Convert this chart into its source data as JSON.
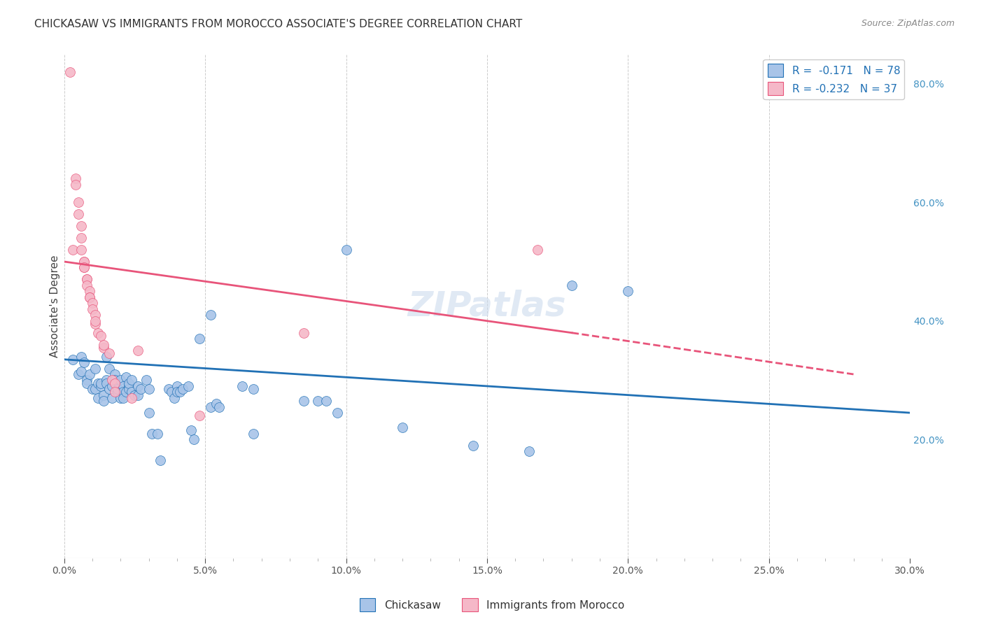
{
  "title": "CHICKASAW VS IMMIGRANTS FROM MOROCCO ASSOCIATE'S DEGREE CORRELATION CHART",
  "source": "Source: ZipAtlas.com",
  "ylabel": "Associate's Degree",
  "xlabel": "",
  "watermark": "ZIPatlas",
  "xlim": [
    0.0,
    0.3
  ],
  "ylim": [
    0.0,
    0.85
  ],
  "xticks": [
    0.0,
    0.05,
    0.1,
    0.15,
    0.2,
    0.25,
    0.3
  ],
  "xticks_minor": [
    0.01,
    0.02,
    0.03,
    0.04,
    0.06,
    0.07,
    0.08,
    0.09,
    0.11,
    0.12,
    0.13,
    0.14,
    0.16,
    0.17,
    0.18,
    0.19,
    0.21,
    0.22,
    0.23,
    0.24,
    0.26,
    0.27,
    0.28,
    0.29
  ],
  "yticks_right": [
    0.2,
    0.4,
    0.6,
    0.8
  ],
  "legend_blue_R": "-0.171",
  "legend_blue_N": "78",
  "legend_pink_R": "-0.232",
  "legend_pink_N": "37",
  "blue_color": "#a8c4e8",
  "pink_color": "#f5b8c8",
  "line_blue": "#2171b5",
  "line_pink": "#e8547a",
  "blue_scatter": [
    [
      0.003,
      0.335
    ],
    [
      0.005,
      0.31
    ],
    [
      0.006,
      0.315
    ],
    [
      0.006,
      0.34
    ],
    [
      0.007,
      0.33
    ],
    [
      0.008,
      0.3
    ],
    [
      0.008,
      0.295
    ],
    [
      0.009,
      0.31
    ],
    [
      0.01,
      0.285
    ],
    [
      0.011,
      0.32
    ],
    [
      0.011,
      0.285
    ],
    [
      0.012,
      0.27
    ],
    [
      0.012,
      0.295
    ],
    [
      0.013,
      0.29
    ],
    [
      0.013,
      0.295
    ],
    [
      0.014,
      0.275
    ],
    [
      0.014,
      0.265
    ],
    [
      0.015,
      0.34
    ],
    [
      0.015,
      0.3
    ],
    [
      0.015,
      0.295
    ],
    [
      0.016,
      0.32
    ],
    [
      0.016,
      0.285
    ],
    [
      0.017,
      0.27
    ],
    [
      0.017,
      0.29
    ],
    [
      0.018,
      0.31
    ],
    [
      0.018,
      0.3
    ],
    [
      0.019,
      0.28
    ],
    [
      0.019,
      0.285
    ],
    [
      0.02,
      0.27
    ],
    [
      0.02,
      0.3
    ],
    [
      0.021,
      0.29
    ],
    [
      0.021,
      0.28
    ],
    [
      0.021,
      0.27
    ],
    [
      0.022,
      0.28
    ],
    [
      0.022,
      0.305
    ],
    [
      0.023,
      0.29
    ],
    [
      0.023,
      0.285
    ],
    [
      0.023,
      0.295
    ],
    [
      0.024,
      0.3
    ],
    [
      0.024,
      0.28
    ],
    [
      0.025,
      0.275
    ],
    [
      0.026,
      0.29
    ],
    [
      0.026,
      0.275
    ],
    [
      0.027,
      0.285
    ],
    [
      0.029,
      0.3
    ],
    [
      0.03,
      0.285
    ],
    [
      0.03,
      0.245
    ],
    [
      0.031,
      0.21
    ],
    [
      0.033,
      0.21
    ],
    [
      0.034,
      0.165
    ],
    [
      0.037,
      0.285
    ],
    [
      0.038,
      0.28
    ],
    [
      0.039,
      0.27
    ],
    [
      0.04,
      0.29
    ],
    [
      0.04,
      0.28
    ],
    [
      0.041,
      0.28
    ],
    [
      0.042,
      0.285
    ],
    [
      0.044,
      0.29
    ],
    [
      0.045,
      0.215
    ],
    [
      0.046,
      0.2
    ],
    [
      0.048,
      0.37
    ],
    [
      0.052,
      0.41
    ],
    [
      0.052,
      0.255
    ],
    [
      0.054,
      0.26
    ],
    [
      0.055,
      0.255
    ],
    [
      0.063,
      0.29
    ],
    [
      0.067,
      0.285
    ],
    [
      0.067,
      0.21
    ],
    [
      0.085,
      0.265
    ],
    [
      0.09,
      0.265
    ],
    [
      0.093,
      0.265
    ],
    [
      0.097,
      0.245
    ],
    [
      0.1,
      0.52
    ],
    [
      0.12,
      0.22
    ],
    [
      0.145,
      0.19
    ],
    [
      0.165,
      0.18
    ],
    [
      0.18,
      0.46
    ],
    [
      0.2,
      0.45
    ]
  ],
  "pink_scatter": [
    [
      0.002,
      0.82
    ],
    [
      0.003,
      0.52
    ],
    [
      0.004,
      0.64
    ],
    [
      0.004,
      0.63
    ],
    [
      0.005,
      0.6
    ],
    [
      0.005,
      0.58
    ],
    [
      0.006,
      0.56
    ],
    [
      0.006,
      0.54
    ],
    [
      0.006,
      0.52
    ],
    [
      0.007,
      0.5
    ],
    [
      0.007,
      0.49
    ],
    [
      0.007,
      0.5
    ],
    [
      0.007,
      0.49
    ],
    [
      0.008,
      0.47
    ],
    [
      0.008,
      0.47
    ],
    [
      0.008,
      0.46
    ],
    [
      0.009,
      0.45
    ],
    [
      0.009,
      0.44
    ],
    [
      0.009,
      0.44
    ],
    [
      0.01,
      0.43
    ],
    [
      0.01,
      0.42
    ],
    [
      0.011,
      0.41
    ],
    [
      0.011,
      0.395
    ],
    [
      0.011,
      0.4
    ],
    [
      0.012,
      0.38
    ],
    [
      0.013,
      0.375
    ],
    [
      0.014,
      0.355
    ],
    [
      0.014,
      0.36
    ],
    [
      0.016,
      0.345
    ],
    [
      0.017,
      0.3
    ],
    [
      0.018,
      0.295
    ],
    [
      0.018,
      0.28
    ],
    [
      0.024,
      0.27
    ],
    [
      0.048,
      0.24
    ],
    [
      0.085,
      0.38
    ],
    [
      0.168,
      0.52
    ],
    [
      0.026,
      0.35
    ]
  ],
  "blue_line": {
    "x0": 0.0,
    "x1": 0.3,
    "y0": 0.335,
    "y1": 0.245
  },
  "pink_line_solid": {
    "x0": 0.0,
    "x1": 0.18,
    "y0": 0.5,
    "y1": 0.38
  },
  "pink_line_dash": {
    "x0": 0.18,
    "x1": 0.28,
    "y0": 0.38,
    "y1": 0.31
  },
  "title_fontsize": 11,
  "label_fontsize": 11,
  "tick_fontsize": 10,
  "legend_fontsize": 11,
  "watermark_fontsize": 36,
  "right_axis_color": "#4393c3",
  "grid_color": "#cccccc"
}
